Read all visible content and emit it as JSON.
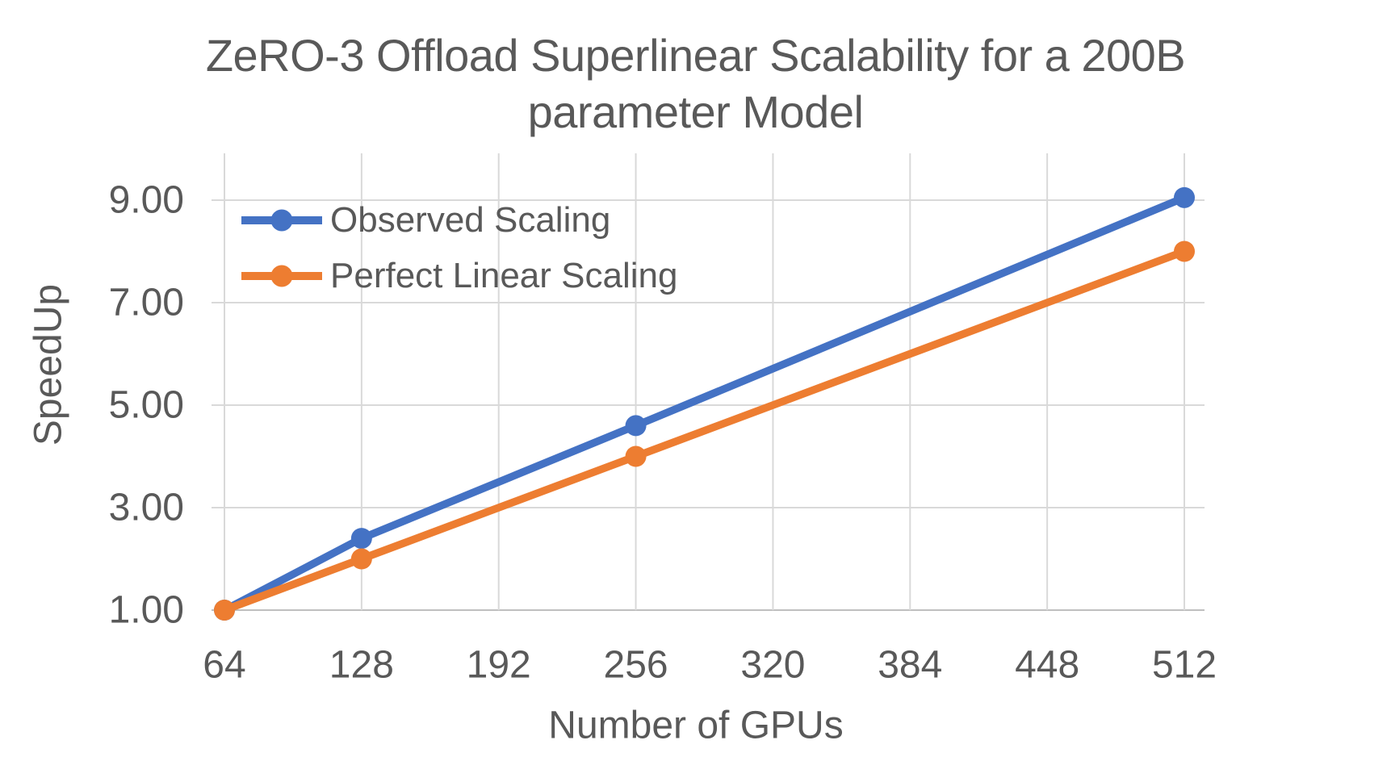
{
  "chart_data": {
    "type": "line",
    "title": "ZeRO-3 Offload Superlinear Scalability for a 200B parameter Model",
    "title_lines": [
      "ZeRO-3 Offload Superlinear Scalability for a 200B",
      "parameter Model"
    ],
    "xlabel": "Number of GPUs",
    "ylabel": "SpeedUp",
    "x": [
      64,
      128,
      256,
      512
    ],
    "x_tick_values": [
      64,
      128,
      192,
      256,
      320,
      384,
      448,
      512
    ],
    "x_tick_labels": [
      "64",
      "128",
      "192",
      "256",
      "320",
      "384",
      "448",
      "512"
    ],
    "y_tick_values": [
      1,
      3,
      5,
      7,
      9
    ],
    "y_tick_labels": [
      "1.00",
      "3.00",
      "5.00",
      "7.00",
      "9.00"
    ],
    "xlim": [
      58,
      521
    ],
    "ylim": [
      1,
      10
    ],
    "grid": true,
    "legend_position": "top-left-inside",
    "series": [
      {
        "name": "Observed Scaling",
        "color": "#4472C4",
        "values": [
          1.0,
          2.4,
          4.6,
          9.05
        ]
      },
      {
        "name": "Perfect Linear Scaling",
        "color": "#ED7D31",
        "values": [
          1.0,
          2.0,
          4.0,
          8.0
        ]
      }
    ],
    "colors": {
      "text": "#595959",
      "gridline": "#D9D9D9",
      "axis_line": "#BFBFBF",
      "background": "#ffffff"
    }
  }
}
